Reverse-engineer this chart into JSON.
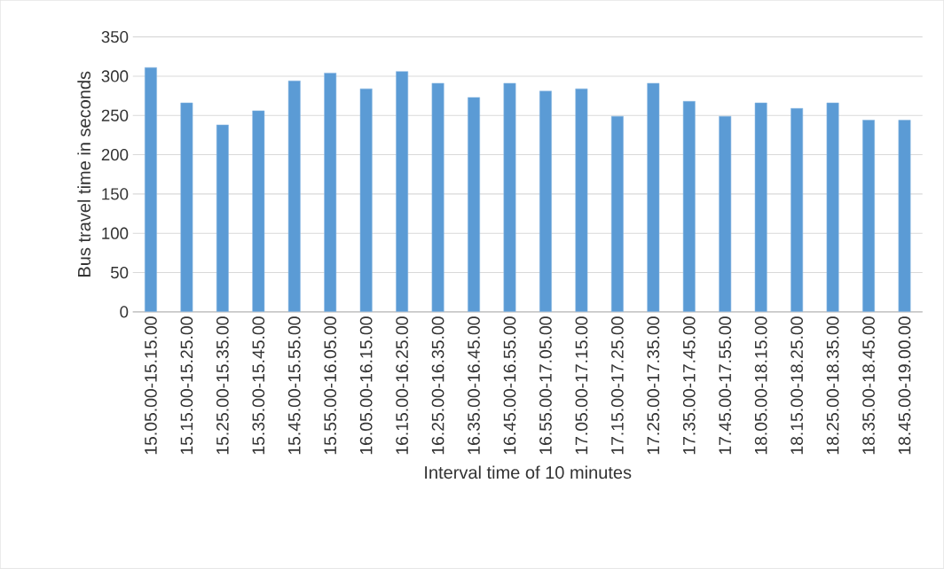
{
  "chart_data": {
    "type": "bar",
    "xlabel": "Interval time of 10 minutes",
    "ylabel": "Bus travel time in seconds",
    "categories": [
      "15.05.00-15.15.00",
      "15.15.00-15.25.00",
      "15.25.00-15.35.00",
      "15.35.00-15.45.00",
      "15.45.00-15.55.00",
      "15.55.00-16.05.00",
      "16.05.00-16.15.00",
      "16.15.00-16.25.00",
      "16.25.00-16.35.00",
      "16.35.00-16.45.00",
      "16.45.00-16.55.00",
      "16.55.00-17.05.00",
      "17.05.00-17.15.00",
      "17.15.00-17.25.00",
      "17.25.00-17.35.00",
      "17.35.00-17.45.00",
      "17.45.00-17.55.00",
      "18.05.00-18.15.00",
      "18.15.00-18.25.00",
      "18.25.00-18.35.00",
      "18.35.00-18.45.00",
      "18.45.00-19.00.00"
    ],
    "values": [
      311,
      266,
      238,
      256,
      294,
      304,
      284,
      306,
      291,
      273,
      291,
      281,
      284,
      249,
      291,
      268,
      249,
      266,
      259,
      266,
      244,
      244
    ],
    "color": "#5b9bd5",
    "ylim": [
      0,
      350
    ],
    "yticks": [
      0,
      50,
      100,
      150,
      200,
      250,
      300,
      350
    ],
    "grid": "y"
  }
}
